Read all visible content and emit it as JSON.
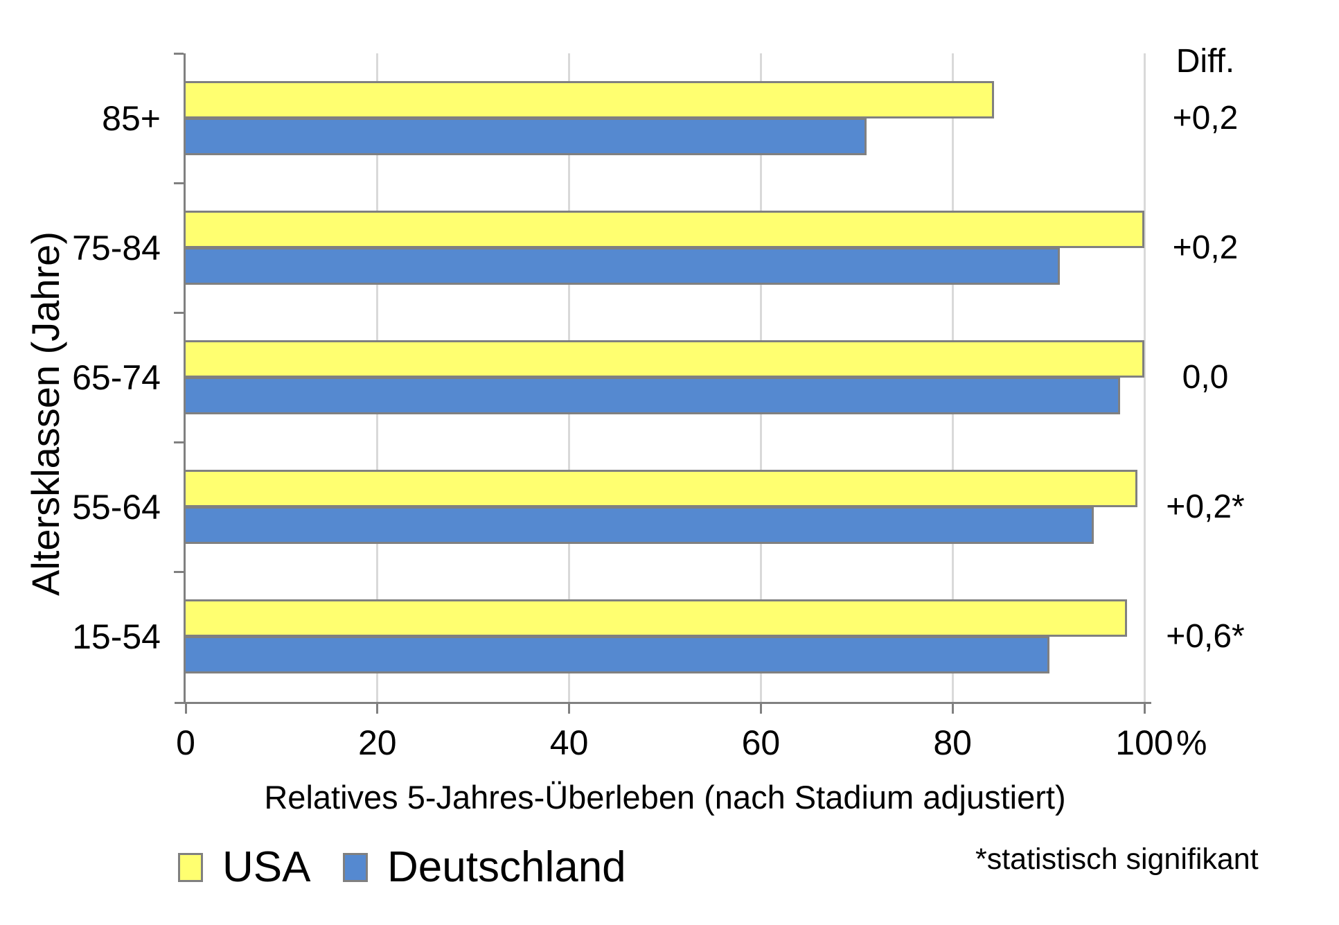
{
  "chart_data": {
    "type": "bar",
    "orientation": "horizontal",
    "categories": [
      "85+",
      "75-84",
      "65-74",
      "55-64",
      "15-54"
    ],
    "series": [
      {
        "name": "USA",
        "color": "#FFFF70",
        "values": [
          84.3,
          100.0,
          100.0,
          99.3,
          98.2
        ]
      },
      {
        "name": "Deutschland",
        "color": "#5589D0",
        "values": [
          71.0,
          91.2,
          97.5,
          94.7,
          90.1
        ]
      }
    ],
    "diff_header": "Diff.",
    "diffs": [
      "+0,2",
      "+0,2",
      "0,0",
      "+0,2*",
      "+0,6*"
    ],
    "xlabel": "Relatives 5-Jahres-Überleben (nach Stadium adjustiert)",
    "ylabel": "Altersklassen (Jahre)",
    "x_ticks": [
      0,
      20,
      40,
      60,
      80,
      100
    ],
    "x_unit": "%",
    "xlim": [
      0,
      100
    ],
    "grid": true,
    "legend_position": "bottom-left",
    "footnote": "*statistisch signifikant",
    "bar_border_color": "#808080",
    "gridline_color": "#d9d9d9",
    "axis_color": "#808080"
  }
}
